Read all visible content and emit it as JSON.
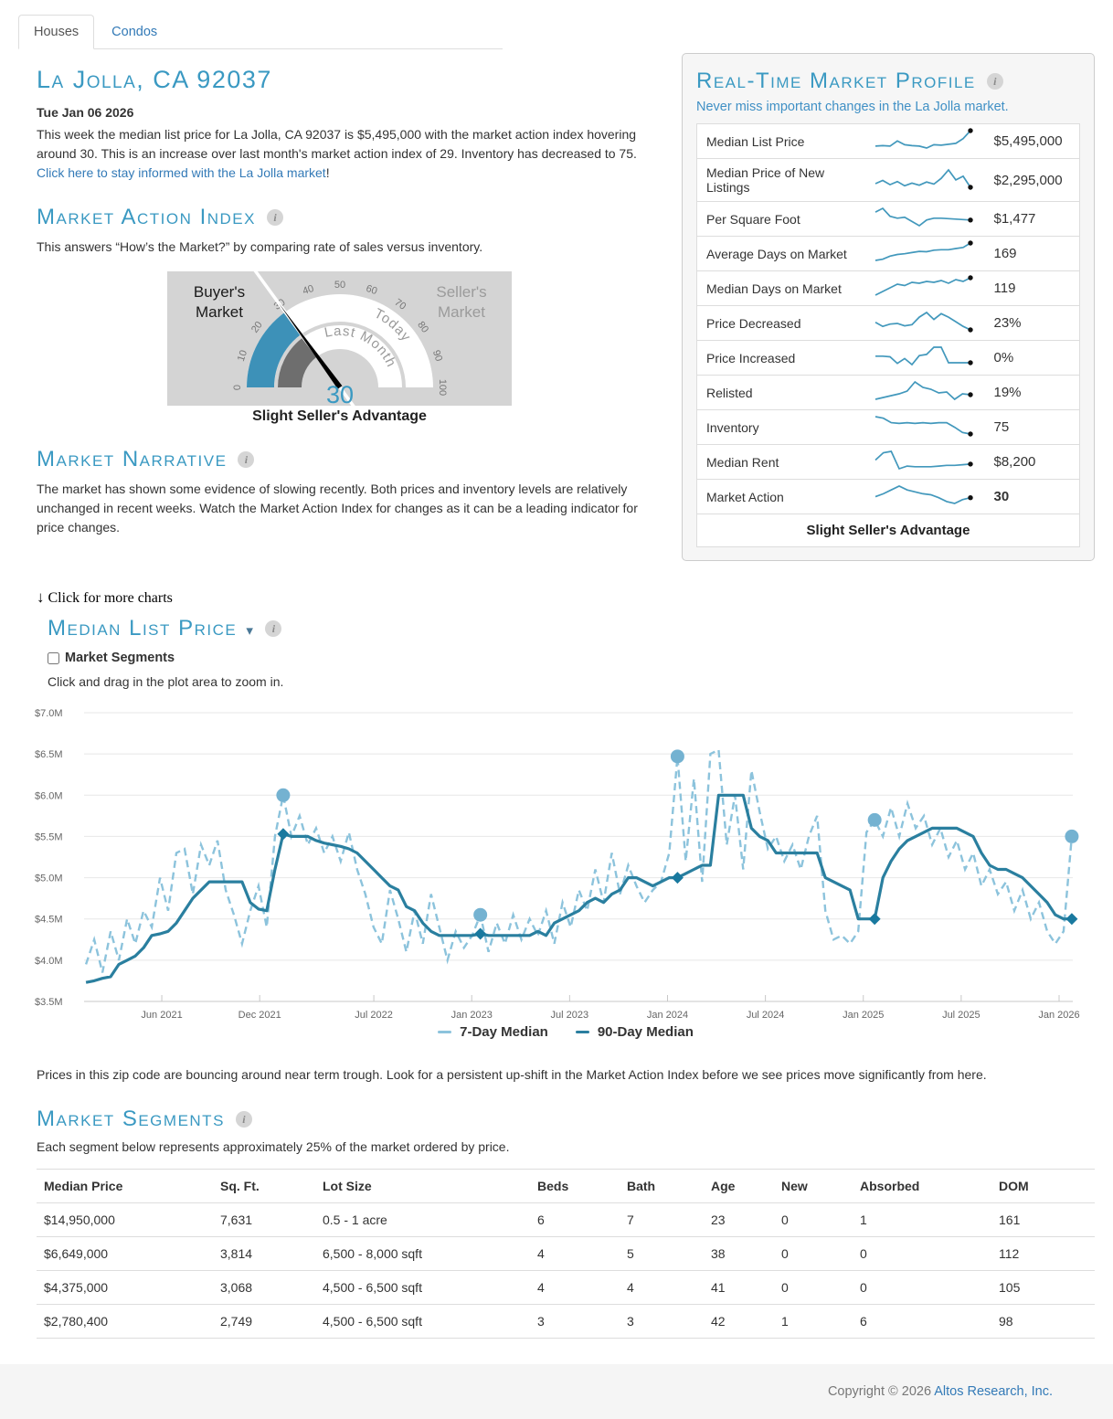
{
  "tabs": [
    {
      "label": "Houses",
      "active": true
    },
    {
      "label": "Condos",
      "active": false
    }
  ],
  "header": {
    "title": "La Jolla, CA 92037",
    "date": "Tue Jan 06 2026",
    "intro_text": "This week the median list price for La Jolla, CA 92037 is $5,495,000 with the market action index hovering around 30. This is an increase over last month's market action index of 29. Inventory has decreased to 75. ",
    "intro_link": "Click here to stay informed with the La Jolla market",
    "intro_bang": "!"
  },
  "market_action_index": {
    "heading": "Market Action Index",
    "description": "This answers “How’s the Market?” by comparing rate of sales versus inventory.",
    "gauge": {
      "value": 30,
      "last_month": 29,
      "ticks": [
        0,
        10,
        20,
        30,
        40,
        50,
        60,
        70,
        80,
        90,
        100
      ],
      "left_label": "Buyer's Market",
      "right_label": "Seller's Market",
      "inner_label": "Last Month",
      "outer_label": "Today",
      "status": "Slight Seller's Advantage",
      "value_color": "#3a99c2",
      "today_color": "#3d91b8",
      "last_month_color": "#6e6e6e",
      "box_bg": "#d4d4d4"
    }
  },
  "market_narrative": {
    "heading": "Market Narrative",
    "text": "The market has shown some evidence of slowing recently. Both prices and inventory levels are relatively unchanged in recent weeks. Watch the Market Action Index for changes as it can be a leading indicator for price changes."
  },
  "profile": {
    "heading": "Real-Time Market Profile",
    "subtitle": "Never miss important changes in the La Jolla market.",
    "spark_color": "#4298bc",
    "rows": [
      {
        "label": "Median List Price",
        "value": "$5,495,000",
        "bold": false,
        "spark": [
          5.0,
          5.1,
          5.0,
          6.1,
          5.3,
          5.1,
          5.0,
          4.6,
          5.3,
          5.2,
          5.4,
          5.6,
          6.6,
          8.3
        ]
      },
      {
        "label": "Median Price of New Listings",
        "value": "$2,295,000",
        "bold": false,
        "spark": [
          5.2,
          5.8,
          5.0,
          5.6,
          4.8,
          5.3,
          4.9,
          5.5,
          5.1,
          6.2,
          7.8,
          5.9,
          6.6,
          4.5
        ]
      },
      {
        "label": "Per Square Foot",
        "value": "$1,477",
        "bold": false,
        "spark": [
          7.2,
          8.0,
          6.3,
          5.9,
          6.1,
          5.2,
          4.3,
          5.5,
          5.9,
          5.9,
          5.8,
          5.7,
          5.6,
          5.5
        ]
      },
      {
        "label": "Average Days on Market",
        "value": "169",
        "bold": false,
        "spark": [
          3.0,
          3.3,
          4.1,
          4.5,
          4.7,
          5.0,
          5.3,
          5.2,
          5.6,
          5.7,
          5.7,
          6.0,
          6.3,
          7.4
        ]
      },
      {
        "label": "Median Days on Market",
        "value": "119",
        "bold": false,
        "spark": [
          2.9,
          3.7,
          4.5,
          5.3,
          5.0,
          5.7,
          5.5,
          5.9,
          5.7,
          6.1,
          5.5,
          6.3,
          5.9,
          6.7
        ]
      },
      {
        "label": "Price Decreased",
        "value": "23%",
        "bold": false,
        "spark": [
          5.6,
          4.9,
          5.3,
          5.4,
          5.0,
          5.2,
          6.5,
          7.3,
          6.1,
          7.1,
          6.5,
          5.7,
          4.9,
          4.3
        ]
      },
      {
        "label": "Price Increased",
        "value": "0%",
        "bold": false,
        "spark": [
          5.5,
          5.5,
          5.4,
          4.3,
          5.1,
          4.1,
          5.6,
          5.8,
          7.0,
          7.0,
          4.4,
          4.4,
          4.4,
          4.4
        ]
      },
      {
        "label": "Relisted",
        "value": "19%",
        "bold": false,
        "spark": [
          4.4,
          4.6,
          4.8,
          5.0,
          5.3,
          6.3,
          5.7,
          5.5,
          5.1,
          5.2,
          4.4,
          5.0,
          4.9
        ]
      },
      {
        "label": "Inventory",
        "value": "75",
        "bold": false,
        "spark": [
          6.5,
          6.3,
          5.7,
          5.6,
          5.7,
          5.6,
          5.7,
          5.6,
          5.7,
          5.7,
          5.1,
          4.4,
          4.2
        ]
      },
      {
        "label": "Median Rent",
        "value": "$8,200",
        "bold": false,
        "spark": [
          5.9,
          7.0,
          7.2,
          4.6,
          5.0,
          4.9,
          4.9,
          4.9,
          5.0,
          5.1,
          5.1,
          5.2,
          5.3
        ]
      },
      {
        "label": "Market Action",
        "value": "30",
        "bold": true,
        "spark": [
          5.2,
          5.5,
          5.9,
          6.3,
          5.9,
          5.7,
          5.5,
          5.4,
          5.1,
          4.7,
          4.5,
          4.9,
          5.1
        ]
      }
    ],
    "footer": "Slight Seller's Advantage"
  },
  "more_charts": {
    "arrow": "↓",
    "label": "Click for more charts"
  },
  "price_chart": {
    "heading": "Median List Price",
    "caret": "▾",
    "checkbox_label": "Market Segments",
    "hint": "Click and drag in the plot area to zoom in."
  },
  "chart_data": {
    "type": "line",
    "title": "Median List Price",
    "x_start": 2021.03,
    "x_step": 0.041958,
    "xlim": [
      2021.02,
      2026.07
    ],
    "ylim": [
      3.5,
      7.0
    ],
    "grid": true,
    "legend_position": "bottom",
    "y_ticks": [
      {
        "label": "$3.5M",
        "v": 3.5
      },
      {
        "label": "$4.0M",
        "v": 4.0
      },
      {
        "label": "$4.5M",
        "v": 4.5
      },
      {
        "label": "$5.0M",
        "v": 5.0
      },
      {
        "label": "$5.5M",
        "v": 5.5
      },
      {
        "label": "$6.0M",
        "v": 6.0
      },
      {
        "label": "$6.5M",
        "v": 6.5
      },
      {
        "label": "$7.0M",
        "v": 7.0
      }
    ],
    "x_ticks": [
      {
        "label": "Jun 2021",
        "t": 2021.417
      },
      {
        "label": "Dec 2021",
        "t": 2021.917
      },
      {
        "label": "Jul 2022",
        "t": 2022.5
      },
      {
        "label": "Jan 2023",
        "t": 2023.0
      },
      {
        "label": "Jul 2023",
        "t": 2023.5
      },
      {
        "label": "Jan 2024",
        "t": 2024.0
      },
      {
        "label": "Jul 2024",
        "t": 2024.5
      },
      {
        "label": "Jan 2025",
        "t": 2025.0
      },
      {
        "label": "Jul 2025",
        "t": 2025.5
      },
      {
        "label": "Jan 2026",
        "t": 2026.0
      }
    ],
    "marker_indices": [
      24,
      48,
      72,
      96,
      120
    ],
    "series": [
      {
        "name": "7-Day Median",
        "style": "dashed",
        "color": "#8cc3dc",
        "marker": "circle",
        "marker_color": "#74b2d1",
        "values": [
          3.95,
          4.25,
          3.85,
          4.35,
          4.0,
          4.5,
          4.2,
          4.6,
          4.4,
          5.0,
          4.6,
          5.3,
          5.35,
          4.8,
          5.4,
          5.15,
          5.45,
          4.85,
          4.55,
          4.2,
          4.6,
          4.9,
          4.4,
          5.5,
          6.0,
          5.5,
          5.75,
          5.4,
          5.6,
          5.3,
          5.5,
          5.2,
          5.55,
          5.1,
          4.8,
          4.4,
          4.2,
          4.85,
          4.5,
          4.1,
          4.6,
          4.2,
          4.8,
          4.4,
          4.0,
          4.35,
          4.15,
          4.3,
          4.55,
          4.1,
          4.45,
          4.2,
          4.55,
          4.25,
          4.5,
          4.3,
          4.6,
          4.2,
          4.7,
          4.4,
          4.85,
          4.6,
          5.1,
          4.7,
          5.3,
          4.8,
          5.15,
          4.9,
          4.7,
          4.85,
          4.95,
          5.3,
          6.47,
          5.2,
          6.2,
          4.95,
          6.5,
          6.55,
          5.4,
          6.0,
          5.1,
          6.3,
          5.8,
          5.35,
          5.5,
          5.2,
          5.4,
          5.1,
          5.5,
          5.75,
          4.6,
          4.25,
          4.3,
          4.2,
          4.35,
          5.55,
          5.7,
          5.5,
          5.85,
          5.5,
          5.9,
          5.6,
          5.75,
          5.4,
          5.6,
          5.25,
          5.45,
          5.1,
          5.3,
          4.9,
          5.1,
          4.8,
          4.95,
          4.6,
          4.85,
          4.5,
          4.7,
          4.35,
          4.2,
          4.35,
          5.5
        ]
      },
      {
        "name": "90-Day Median",
        "style": "solid",
        "color": "#2a7f9f",
        "marker": "diamond",
        "marker_color": "#19799f",
        "values": [
          3.73,
          3.75,
          3.78,
          3.8,
          3.95,
          4.0,
          4.05,
          4.15,
          4.3,
          4.32,
          4.35,
          4.45,
          4.6,
          4.75,
          4.85,
          4.95,
          4.95,
          4.95,
          4.95,
          4.95,
          4.7,
          4.62,
          4.6,
          5.1,
          5.53,
          5.5,
          5.5,
          5.5,
          5.45,
          5.42,
          5.4,
          5.38,
          5.35,
          5.3,
          5.2,
          5.1,
          5.0,
          4.9,
          4.85,
          4.65,
          4.6,
          4.45,
          4.35,
          4.3,
          4.3,
          4.3,
          4.3,
          4.3,
          4.32,
          4.3,
          4.3,
          4.3,
          4.3,
          4.3,
          4.3,
          4.35,
          4.3,
          4.45,
          4.5,
          4.55,
          4.6,
          4.7,
          4.75,
          4.7,
          4.8,
          4.85,
          5.0,
          5.0,
          4.95,
          4.9,
          4.95,
          5.0,
          5.0,
          5.05,
          5.1,
          5.15,
          5.15,
          6.0,
          6.0,
          6.0,
          6.0,
          5.6,
          5.5,
          5.45,
          5.3,
          5.3,
          5.3,
          5.3,
          5.3,
          5.3,
          5.0,
          4.95,
          4.9,
          4.85,
          4.5,
          4.5,
          4.5,
          5.0,
          5.2,
          5.35,
          5.45,
          5.5,
          5.55,
          5.6,
          5.6,
          5.6,
          5.6,
          5.55,
          5.5,
          5.3,
          5.15,
          5.1,
          5.1,
          5.05,
          5.0,
          4.9,
          4.8,
          4.7,
          4.55,
          4.5,
          4.5
        ]
      }
    ]
  },
  "trough_note": "Prices in this zip code are bouncing around near term trough. Look for a persistent up-shift in the Market Action Index before we see prices move significantly from here.",
  "market_segments": {
    "heading": "Market Segments",
    "subtitle": "Each segment below represents approximately 25% of the market ordered by price.",
    "columns": [
      "Median Price",
      "Sq. Ft.",
      "Lot Size",
      "Beds",
      "Bath",
      "Age",
      "New",
      "Absorbed",
      "DOM"
    ],
    "rows": [
      [
        "$14,950,000",
        "7,631",
        "0.5 - 1 acre",
        "6",
        "7",
        "23",
        "0",
        "1",
        "161"
      ],
      [
        "$6,649,000",
        "3,814",
        "6,500 - 8,000 sqft",
        "4",
        "5",
        "38",
        "0",
        "0",
        "112"
      ],
      [
        "$4,375,000",
        "3,068",
        "4,500 - 6,500 sqft",
        "4",
        "4",
        "41",
        "0",
        "0",
        "105"
      ],
      [
        "$2,780,400",
        "2,749",
        "4,500 - 6,500 sqft",
        "3",
        "3",
        "42",
        "1",
        "6",
        "98"
      ]
    ]
  },
  "footer": {
    "copyright_prefix": "Copyright © 2026 ",
    "link": "Altos Research, Inc."
  }
}
